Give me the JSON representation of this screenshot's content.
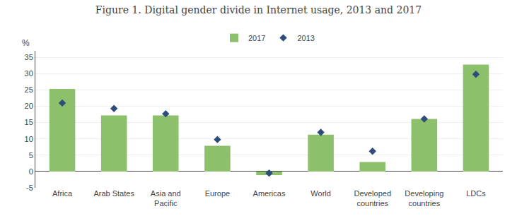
{
  "chart_data": {
    "type": "bar",
    "title": "Figure 1. Digital gender divide in Internet usage, 2013 and 2017",
    "ylabel": "%",
    "categories": [
      "Africa",
      "Arab States",
      "Asia and\nPacific",
      "Europe",
      "Americas",
      "World",
      "Developed\ncountries",
      "Developing\ncountries",
      "LDCs"
    ],
    "series": [
      {
        "name": "2017",
        "type": "bar",
        "color": "#8dc06a",
        "values": [
          25.3,
          17.2,
          17.2,
          7.9,
          -1.1,
          11.3,
          2.9,
          16.1,
          32.8
        ]
      },
      {
        "name": "2013",
        "type": "scatter",
        "marker": "diamond",
        "color": "#2e4d7b",
        "values": [
          21.0,
          19.3,
          17.7,
          9.8,
          -0.5,
          12.0,
          6.2,
          16.1,
          29.8
        ]
      }
    ],
    "ylim": [
      -5,
      37
    ],
    "yticks": [
      -5,
      0,
      5,
      10,
      15,
      20,
      25,
      30,
      35
    ],
    "grid": true,
    "legend": "top"
  }
}
